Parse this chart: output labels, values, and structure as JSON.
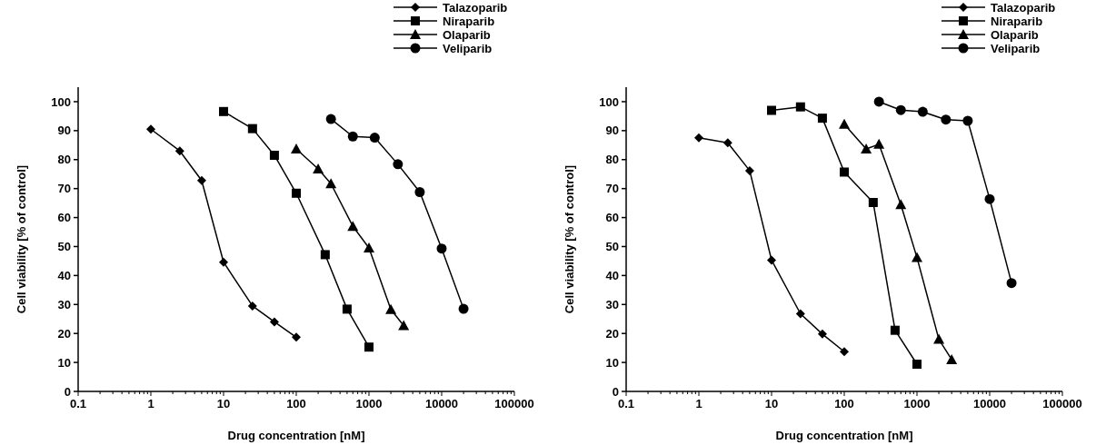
{
  "chart_data": [
    {
      "type": "line",
      "xlabel": "Drug concentration [nM]",
      "ylabel": "Cell viability [% of control]",
      "log": "x",
      "xlim": [
        0.1,
        100000
      ],
      "ylim": [
        0,
        105
      ],
      "xticks": [
        0.1,
        {
          "value": 0.2,
          "label": null
        },
        {
          "value": 0.3,
          "label": null
        },
        {
          "value": 0.4,
          "label": null
        },
        {
          "value": 0.5,
          "label": null
        },
        {
          "value": 0.6,
          "label": null
        },
        {
          "value": 0.7,
          "label": null
        },
        {
          "value": 0.8,
          "label": null
        },
        {
          "value": 0.9,
          "label": null
        },
        1,
        {
          "value": 2,
          "label": null
        },
        {
          "value": 3,
          "label": null
        },
        {
          "value": 4,
          "label": null
        },
        {
          "value": 5,
          "label": null
        },
        {
          "value": 6,
          "label": null
        },
        {
          "value": 7,
          "label": null
        },
        {
          "value": 8,
          "label": null
        },
        {
          "value": 9,
          "label": null
        },
        10,
        {
          "value": 20,
          "label": null
        },
        {
          "value": 30,
          "label": null
        },
        {
          "value": 40,
          "label": null
        },
        {
          "value": 50,
          "label": null
        },
        {
          "value": 60,
          "label": null
        },
        {
          "value": 70,
          "label": null
        },
        {
          "value": 80,
          "label": null
        },
        {
          "value": 90,
          "label": null
        },
        100,
        {
          "value": 200,
          "label": null
        },
        {
          "value": 300,
          "label": null
        },
        {
          "value": 400,
          "label": null
        },
        {
          "value": 500,
          "label": null
        },
        {
          "value": 600,
          "label": null
        },
        {
          "value": 700,
          "label": null
        },
        {
          "value": 800,
          "label": null
        },
        {
          "value": 900,
          "label": null
        },
        1000,
        {
          "value": 2000,
          "label": null
        },
        {
          "value": 3000,
          "label": null
        },
        {
          "value": 4000,
          "label": null
        },
        {
          "value": 5000,
          "label": null
        },
        {
          "value": 6000,
          "label": null
        },
        {
          "value": 7000,
          "label": null
        },
        {
          "value": 8000,
          "label": null
        },
        {
          "value": 9000,
          "label": null
        },
        10000,
        {
          "value": 20000,
          "label": null
        },
        {
          "value": 30000,
          "label": null
        },
        {
          "value": 40000,
          "label": null
        },
        {
          "value": 50000,
          "label": null
        },
        {
          "value": 60000,
          "label": null
        },
        {
          "value": 70000,
          "label": null
        },
        {
          "value": 80000,
          "label": null
        },
        {
          "value": 90000,
          "label": null
        },
        100000
      ],
      "yticks": [
        0,
        10,
        20,
        30,
        40,
        50,
        60,
        70,
        80,
        90,
        100
      ],
      "grid": false,
      "legend": "top right",
      "line_style": "solid",
      "series": [
        {
          "name": "Talazoparib",
          "color": "#000000",
          "marker": "diamond",
          "x": [
            1,
            2.5,
            5,
            10,
            25,
            50,
            100
          ],
          "values": [
            90.5,
            83,
            72.8,
            44.6,
            29.5,
            24,
            18.7
          ]
        },
        {
          "name": "Niraparib",
          "color": "#000000",
          "marker": "square",
          "x": [
            10,
            25,
            50,
            100,
            250,
            500,
            1000
          ],
          "values": [
            96.6,
            90.7,
            81.5,
            68.4,
            47.2,
            28.4,
            15.3
          ]
        },
        {
          "name": "Olaparib",
          "color": "#000000",
          "marker": "triangle",
          "x": [
            100,
            200,
            300,
            600,
            1000,
            2000,
            3000
          ],
          "values": [
            83.7,
            76.8,
            71.7,
            57,
            49.5,
            28.3,
            22.7
          ]
        },
        {
          "name": "Veliparib",
          "color": "#000000",
          "marker": "circle",
          "x": [
            300,
            600,
            1200,
            2500,
            5000,
            10000,
            20000
          ],
          "values": [
            94,
            88,
            87.6,
            78.4,
            68.8,
            49.3,
            28.5
          ]
        }
      ]
    },
    {
      "type": "line",
      "xlabel": "Drug concentration [nM]",
      "ylabel": "Cell viability [% of control]",
      "log": "x",
      "xlim": [
        0.1,
        100000
      ],
      "ylim": [
        0,
        105
      ],
      "xticks": [
        0.1,
        {
          "value": 0.2,
          "label": null
        },
        {
          "value": 0.3,
          "label": null
        },
        {
          "value": 0.4,
          "label": null
        },
        {
          "value": 0.5,
          "label": null
        },
        {
          "value": 0.6,
          "label": null
        },
        {
          "value": 0.7,
          "label": null
        },
        {
          "value": 0.8,
          "label": null
        },
        {
          "value": 0.9,
          "label": null
        },
        1,
        {
          "value": 2,
          "label": null
        },
        {
          "value": 3,
          "label": null
        },
        {
          "value": 4,
          "label": null
        },
        {
          "value": 5,
          "label": null
        },
        {
          "value": 6,
          "label": null
        },
        {
          "value": 7,
          "label": null
        },
        {
          "value": 8,
          "label": null
        },
        {
          "value": 9,
          "label": null
        },
        10,
        {
          "value": 20,
          "label": null
        },
        {
          "value": 30,
          "label": null
        },
        {
          "value": 40,
          "label": null
        },
        {
          "value": 50,
          "label": null
        },
        {
          "value": 60,
          "label": null
        },
        {
          "value": 70,
          "label": null
        },
        {
          "value": 80,
          "label": null
        },
        {
          "value": 90,
          "label": null
        },
        100,
        {
          "value": 200,
          "label": null
        },
        {
          "value": 300,
          "label": null
        },
        {
          "value": 400,
          "label": null
        },
        {
          "value": 500,
          "label": null
        },
        {
          "value": 600,
          "label": null
        },
        {
          "value": 700,
          "label": null
        },
        {
          "value": 800,
          "label": null
        },
        {
          "value": 900,
          "label": null
        },
        1000,
        {
          "value": 2000,
          "label": null
        },
        {
          "value": 3000,
          "label": null
        },
        {
          "value": 4000,
          "label": null
        },
        {
          "value": 5000,
          "label": null
        },
        {
          "value": 6000,
          "label": null
        },
        {
          "value": 7000,
          "label": null
        },
        {
          "value": 8000,
          "label": null
        },
        {
          "value": 9000,
          "label": null
        },
        10000,
        {
          "value": 20000,
          "label": null
        },
        {
          "value": 30000,
          "label": null
        },
        {
          "value": 40000,
          "label": null
        },
        {
          "value": 50000,
          "label": null
        },
        {
          "value": 60000,
          "label": null
        },
        {
          "value": 70000,
          "label": null
        },
        {
          "value": 80000,
          "label": null
        },
        {
          "value": 90000,
          "label": null
        },
        100000
      ],
      "yticks": [
        0,
        10,
        20,
        30,
        40,
        50,
        60,
        70,
        80,
        90,
        100
      ],
      "grid": false,
      "legend": "top right",
      "line_style": "solid",
      "series": [
        {
          "name": "Talazoparib",
          "color": "#000000",
          "marker": "diamond",
          "x": [
            1,
            2.5,
            5,
            10,
            25,
            50,
            100
          ],
          "values": [
            87.5,
            85.8,
            76.2,
            45.3,
            26.8,
            19.8,
            13.7
          ]
        },
        {
          "name": "Niraparib",
          "color": "#000000",
          "marker": "square",
          "x": [
            10,
            25,
            50,
            100,
            250,
            500,
            1000
          ],
          "values": [
            97,
            98.2,
            94.3,
            75.7,
            65.2,
            21.1,
            9.4
          ]
        },
        {
          "name": "Olaparib",
          "color": "#000000",
          "marker": "triangle",
          "x": [
            100,
            200,
            300,
            600,
            1000,
            2000,
            3000
          ],
          "values": [
            92.2,
            83.7,
            85.3,
            64.5,
            46.2,
            18,
            11
          ]
        },
        {
          "name": "Veliparib",
          "color": "#000000",
          "marker": "circle",
          "x": [
            300,
            600,
            1200,
            2500,
            5000,
            10000,
            20000
          ],
          "values": [
            100,
            97.1,
            96.5,
            93.8,
            93.4,
            66.4,
            37.4
          ]
        }
      ]
    }
  ]
}
